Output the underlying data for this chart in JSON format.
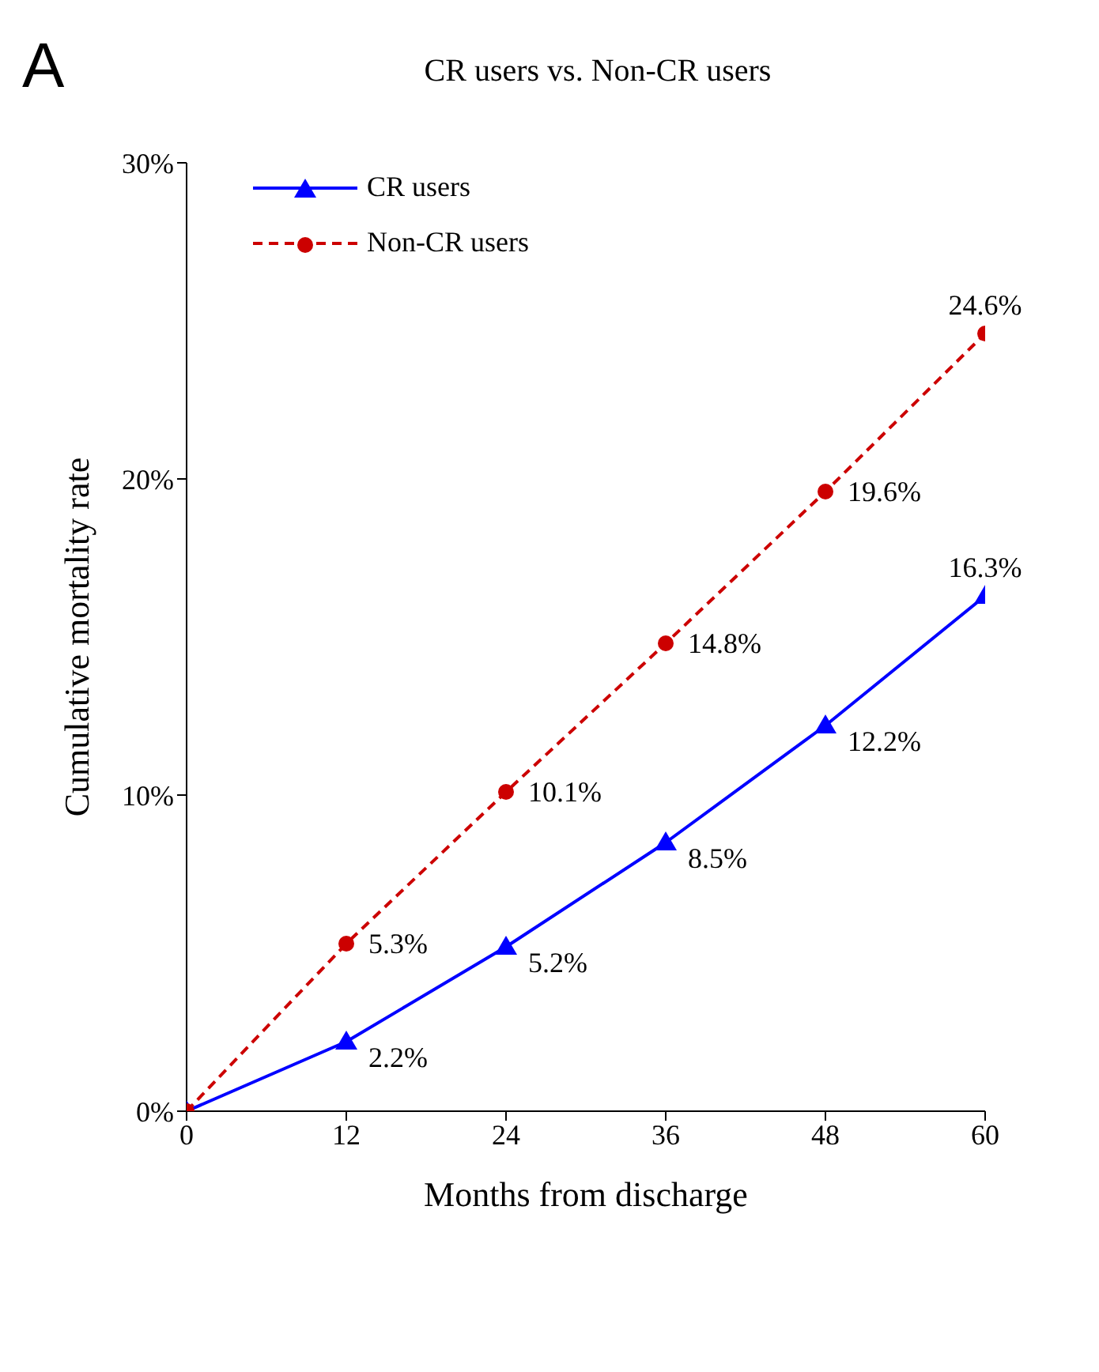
{
  "chart_data": {
    "type": "line",
    "title": "CR users vs. Non-CR users",
    "xlabel": "Months from discharge",
    "ylabel": "Cumulative mortality rate",
    "annotations": [
      "A"
    ],
    "x": [
      0,
      12,
      24,
      36,
      48,
      60
    ],
    "series": [
      {
        "name": "CR users",
        "color": "#0000ff",
        "marker": "triangle",
        "line_style": "solid",
        "values": [
          0,
          2.2,
          5.2,
          8.5,
          12.2,
          16.3
        ],
        "value_labels": [
          null,
          "2.2%",
          "5.2%",
          "8.5%",
          "12.2%",
          "16.3%"
        ]
      },
      {
        "name": "Non-CR users",
        "color": "#cc0000",
        "marker": "circle",
        "line_style": "dashed",
        "values": [
          0,
          5.3,
          10.1,
          14.8,
          19.6,
          24.6
        ],
        "value_labels": [
          null,
          "5.3%",
          "10.1%",
          "14.8%",
          "19.6%",
          "24.6%"
        ]
      }
    ],
    "xlim": [
      0,
      60
    ],
    "xticks": [
      0,
      12,
      24,
      36,
      48,
      60
    ],
    "ylim": [
      0,
      30
    ],
    "yticks": [
      {
        "value": 0,
        "label": "0%"
      },
      {
        "value": 10,
        "label": "10%"
      },
      {
        "value": 20,
        "label": "20%"
      },
      {
        "value": 30,
        "label": "30%"
      }
    ],
    "grid": false,
    "legend": "top left"
  }
}
